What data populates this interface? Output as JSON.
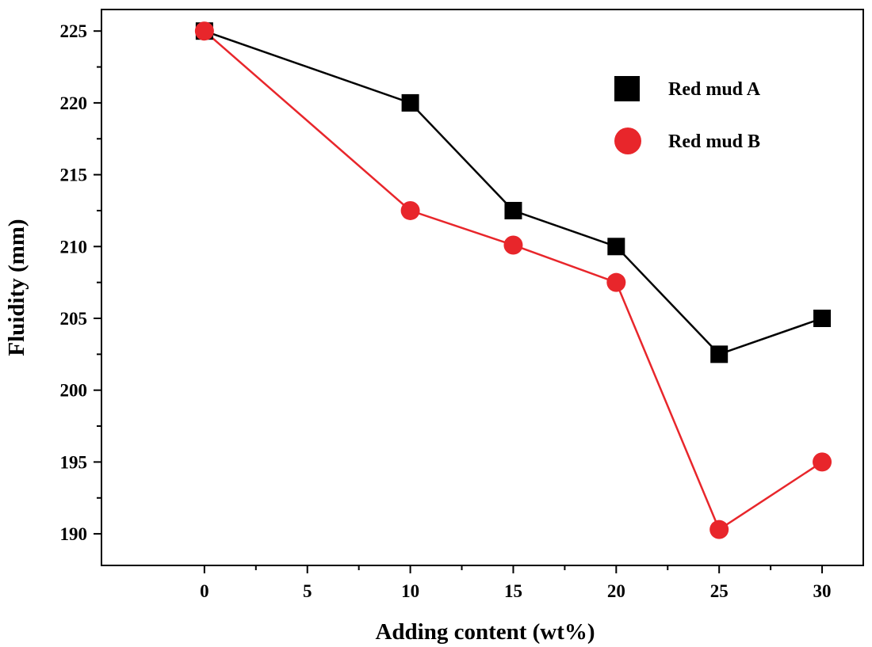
{
  "chart_data": {
    "type": "line",
    "title": "",
    "xlabel": "Adding content  (wt%)",
    "ylabel": "Fluidity (mm)",
    "xlim": [
      -5,
      32
    ],
    "ylim": [
      187.8,
      226.5
    ],
    "xticks": [
      0,
      5,
      10,
      15,
      20,
      25,
      30
    ],
    "xtick_labels": [
      "0",
      "5",
      "10",
      "15",
      "20",
      "25",
      "30"
    ],
    "yticks": [
      190,
      195,
      200,
      205,
      210,
      215,
      220,
      225
    ],
    "ytick_labels": [
      "190",
      "195",
      "200",
      "205",
      "210",
      "215",
      "220",
      "225"
    ],
    "grid": false,
    "legend_position": "top-right",
    "series": [
      {
        "name": "Red mud A",
        "marker": "square",
        "color": "#000000",
        "x": [
          0,
          10,
          15,
          20,
          25,
          30
        ],
        "y": [
          225,
          220,
          212.5,
          210,
          202.5,
          205
        ]
      },
      {
        "name": "Red mud B",
        "marker": "circle",
        "color": "#e8262b",
        "x": [
          0,
          10,
          15,
          20,
          25,
          30
        ],
        "y": [
          225,
          212.5,
          210.1,
          207.5,
          190.3,
          195
        ]
      }
    ]
  }
}
